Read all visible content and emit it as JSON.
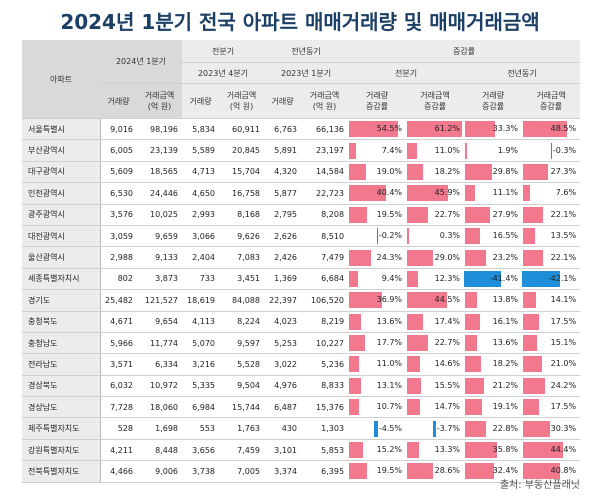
{
  "title": "2024년 1분기 전국 아파트 매매거래량 및 매매거래금액",
  "header": {
    "region": "아파트",
    "q1_2024": "2024년 1분기",
    "prev_q": "전분기",
    "prev_y": "전년동기",
    "change": "증감률",
    "q4_2023": "2023년 4분기",
    "q1_2023": "2023년 1분기",
    "change_prev_q": "전분기",
    "change_prev_y": "전년동기",
    "vol": "거래량",
    "amt_1": "거래금액",
    "amt_2": "(억 원)",
    "vol_chg_1": "거래량",
    "vol_chg_2": "증감률",
    "amt_chg_1": "거래금액",
    "amt_chg_2": "증감률"
  },
  "rows": [
    {
      "region": "서울특별시",
      "v24": "9,016",
      "a24": "98,196",
      "vq": "5,834",
      "aq": "60,911",
      "vy": "6,763",
      "ay": "66,136",
      "c1": "54.5%",
      "c2": "61.2%",
      "c3": "33.3%",
      "c4": "48.5%",
      "n1": 54.5,
      "n2": 61.2,
      "n3": 33.3,
      "n4": 48.5
    },
    {
      "region": "부산광역시",
      "v24": "6,005",
      "a24": "23,139",
      "vq": "5,589",
      "aq": "20,845",
      "vy": "5,891",
      "ay": "23,197",
      "c1": "7.4%",
      "c2": "11.0%",
      "c3": "1.9%",
      "c4": "-0.3%",
      "n1": 7.4,
      "n2": 11.0,
      "n3": 1.9,
      "n4": -0.3
    },
    {
      "region": "대구광역시",
      "v24": "5,609",
      "a24": "18,565",
      "vq": "4,713",
      "aq": "15,704",
      "vy": "4,320",
      "ay": "14,584",
      "c1": "19.0%",
      "c2": "18.2%",
      "c3": "29.8%",
      "c4": "27.3%",
      "n1": 19.0,
      "n2": 18.2,
      "n3": 29.8,
      "n4": 27.3
    },
    {
      "region": "인천광역시",
      "v24": "6,530",
      "a24": "24,446",
      "vq": "4,650",
      "aq": "16,758",
      "vy": "5,877",
      "ay": "22,723",
      "c1": "40.4%",
      "c2": "45.9%",
      "c3": "11.1%",
      "c4": "7.6%",
      "n1": 40.4,
      "n2": 45.9,
      "n3": 11.1,
      "n4": 7.6
    },
    {
      "region": "광주광역시",
      "v24": "3,576",
      "a24": "10,025",
      "vq": "2,993",
      "aq": "8,168",
      "vy": "2,795",
      "ay": "8,208",
      "c1": "19.5%",
      "c2": "22.7%",
      "c3": "27.9%",
      "c4": "22.1%",
      "n1": 19.5,
      "n2": 22.7,
      "n3": 27.9,
      "n4": 22.1
    },
    {
      "region": "대전광역시",
      "v24": "3,059",
      "a24": "9,659",
      "vq": "3,066",
      "aq": "9,626",
      "vy": "2,626",
      "ay": "8,510",
      "c1": "-0.2%",
      "c2": "0.3%",
      "c3": "16.5%",
      "c4": "13.5%",
      "n1": -0.2,
      "n2": 0.3,
      "n3": 16.5,
      "n4": 13.5
    },
    {
      "region": "울산광역시",
      "v24": "2,988",
      "a24": "9,133",
      "vq": "2,404",
      "aq": "7,083",
      "vy": "2,426",
      "ay": "7,479",
      "c1": "24.3%",
      "c2": "29.0%",
      "c3": "23.2%",
      "c4": "22.1%",
      "n1": 24.3,
      "n2": 29.0,
      "n3": 23.2,
      "n4": 22.1
    },
    {
      "region": "세종특별자치시",
      "v24": "802",
      "a24": "3,873",
      "vq": "733",
      "aq": "3,451",
      "vy": "1,369",
      "ay": "6,684",
      "c1": "9.4%",
      "c2": "12.3%",
      "c3": "-41.4%",
      "c4": "-42.1%",
      "n1": 9.4,
      "n2": 12.3,
      "n3": -41.4,
      "n4": -42.1
    },
    {
      "region": "경기도",
      "v24": "25,482",
      "a24": "121,527",
      "vq": "18,619",
      "aq": "84,088",
      "vy": "22,397",
      "ay": "106,520",
      "c1": "36.9%",
      "c2": "44.5%",
      "c3": "13.8%",
      "c4": "14.1%",
      "n1": 36.9,
      "n2": 44.5,
      "n3": 13.8,
      "n4": 14.1
    },
    {
      "region": "충청북도",
      "v24": "4,671",
      "a24": "9,654",
      "vq": "4,113",
      "aq": "8,224",
      "vy": "4,023",
      "ay": "8,219",
      "c1": "13.6%",
      "c2": "17.4%",
      "c3": "16.1%",
      "c4": "17.5%",
      "n1": 13.6,
      "n2": 17.4,
      "n3": 16.1,
      "n4": 17.5
    },
    {
      "region": "충청남도",
      "v24": "5,966",
      "a24": "11,774",
      "vq": "5,070",
      "aq": "9,597",
      "vy": "5,253",
      "ay": "10,227",
      "c1": "17.7%",
      "c2": "22.7%",
      "c3": "13.6%",
      "c4": "15.1%",
      "n1": 17.7,
      "n2": 22.7,
      "n3": 13.6,
      "n4": 15.1
    },
    {
      "region": "전라남도",
      "v24": "3,571",
      "a24": "6,334",
      "vq": "3,216",
      "aq": "5,528",
      "vy": "3,022",
      "ay": "5,236",
      "c1": "11.0%",
      "c2": "14.6%",
      "c3": "18.2%",
      "c4": "21.0%",
      "n1": 11.0,
      "n2": 14.6,
      "n3": 18.2,
      "n4": 21.0
    },
    {
      "region": "경상북도",
      "v24": "6,032",
      "a24": "10,972",
      "vq": "5,335",
      "aq": "9,504",
      "vy": "4,976",
      "ay": "8,833",
      "c1": "13.1%",
      "c2": "15.5%",
      "c3": "21.2%",
      "c4": "24.2%",
      "n1": 13.1,
      "n2": 15.5,
      "n3": 21.2,
      "n4": 24.2
    },
    {
      "region": "경상남도",
      "v24": "7,728",
      "a24": "18,060",
      "vq": "6,984",
      "aq": "15,744",
      "vy": "6,487",
      "ay": "15,376",
      "c1": "10.7%",
      "c2": "14.7%",
      "c3": "19.1%",
      "c4": "17.5%",
      "n1": 10.7,
      "n2": 14.7,
      "n3": 19.1,
      "n4": 17.5
    },
    {
      "region": "제주특별자치도",
      "v24": "528",
      "a24": "1,698",
      "vq": "553",
      "aq": "1,763",
      "vy": "430",
      "ay": "1,303",
      "c1": "-4.5%",
      "c2": "-3.7%",
      "c3": "22.8%",
      "c4": "30.3%",
      "n1": -4.5,
      "n2": -3.7,
      "n3": 22.8,
      "n4": 30.3
    },
    {
      "region": "강원특별자치도",
      "v24": "4,211",
      "a24": "8,448",
      "vq": "3,656",
      "aq": "7,459",
      "vy": "3,101",
      "ay": "5,853",
      "c1": "15.2%",
      "c2": "13.3%",
      "c3": "35.8%",
      "c4": "44.4%",
      "n1": 15.2,
      "n2": 13.3,
      "n3": 35.8,
      "n4": 44.4
    },
    {
      "region": "전북특별자치도",
      "v24": "4,466",
      "a24": "9,006",
      "vq": "3,738",
      "aq": "7,005",
      "vy": "3,374",
      "ay": "6,395",
      "c1": "19.5%",
      "c2": "28.6%",
      "c3": "32.4%",
      "c4": "40.8%",
      "n1": 19.5,
      "n2": 28.6,
      "n3": 32.4,
      "n4": 40.8
    }
  ],
  "source": "출처: 부동산플래닛",
  "colors": {
    "positive": "#f0607a",
    "negative": "#1f8ed8",
    "title": "#1c3f66"
  }
}
